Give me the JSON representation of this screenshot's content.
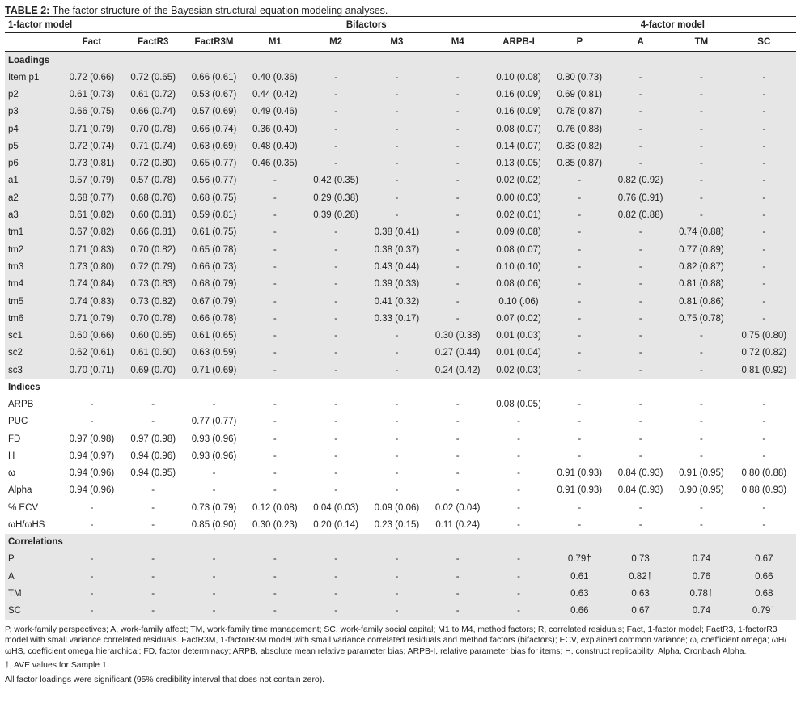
{
  "caption": {
    "label": "TABLE 2:",
    "text": " The factor structure of the Bayesian structural equation modeling analyses."
  },
  "group_headers": {
    "one_factor": "1-factor model",
    "bifactors": "Bifactors",
    "four_factor": "4-factor model"
  },
  "columns": [
    "",
    "Fact",
    "FactR3",
    "FactR3M",
    "M1",
    "M2",
    "M3",
    "M4",
    "ARPB-I",
    "P",
    "A",
    "TM",
    "SC"
  ],
  "sections": {
    "loadings": "Loadings",
    "indices": "Indices",
    "correlations": "Correlations"
  },
  "loadings": [
    [
      "Item p1",
      "0.72 (0.66)",
      "0.72 (0.65)",
      "0.66 (0.61)",
      "0.40 (0.36)",
      "-",
      "-",
      "-",
      "0.10 (0.08)",
      "0.80 (0.73)",
      "-",
      "-",
      "-"
    ],
    [
      "p2",
      "0.61 (0.73)",
      "0.61 (0.72)",
      "0.53 (0.67)",
      "0.44 (0.42)",
      "-",
      "-",
      "-",
      "0.16 (0.09)",
      "0.69 (0.81)",
      "-",
      "-",
      "-"
    ],
    [
      "p3",
      "0.66 (0.75)",
      "0.66 (0.74)",
      "0.57 (0.69)",
      "0.49 (0.46)",
      "-",
      "-",
      "-",
      "0.16 (0.09)",
      "0.78 (0.87)",
      "-",
      "-",
      "-"
    ],
    [
      "p4",
      "0.71 (0.79)",
      "0.70 (0.78)",
      "0.66 (0.74)",
      "0.36 (0.40)",
      "-",
      "-",
      "-",
      "0.08 (0.07)",
      "0.76 (0.88)",
      "-",
      "-",
      "-"
    ],
    [
      "p5",
      "0.72 (0.74)",
      "0.71 (0.74)",
      "0.63 (0.69)",
      "0.48 (0.40)",
      "-",
      "-",
      "-",
      "0.14 (0.07)",
      "0.83 (0.82)",
      "-",
      "-",
      "-"
    ],
    [
      "p6",
      "0.73 (0.81)",
      "0.72 (0.80)",
      "0.65 (0.77)",
      "0.46 (0.35)",
      "-",
      "-",
      "-",
      "0.13 (0.05)",
      "0.85 (0.87)",
      "-",
      "-",
      "-"
    ],
    [
      "a1",
      "0.57 (0.79)",
      "0.57 (0.78)",
      "0.56 (0.77)",
      "-",
      "0.42 (0.35)",
      "-",
      "-",
      "0.02 (0.02)",
      "-",
      "0.82 (0.92)",
      "-",
      "-"
    ],
    [
      "a2",
      "0.68 (0.77)",
      "0.68 (0.76)",
      "0.68 (0.75)",
      "-",
      "0.29 (0.38)",
      "-",
      "-",
      "0.00 (0.03)",
      "-",
      "0.76 (0.91)",
      "-",
      "-"
    ],
    [
      "a3",
      "0.61 (0.82)",
      "0.60 (0.81)",
      "0.59 (0.81)",
      "-",
      "0.39 (0.28)",
      "-",
      "-",
      "0.02 (0.01)",
      "-",
      "0.82 (0.88)",
      "-",
      "-"
    ],
    [
      "tm1",
      "0.67 (0.82)",
      "0.66 (0.81)",
      "0.61 (0.75)",
      "-",
      "-",
      "0.38 (0.41)",
      "-",
      "0.09 (0.08)",
      "-",
      "-",
      "0.74 (0.88)",
      "-"
    ],
    [
      "tm2",
      "0.71 (0.83)",
      "0.70 (0.82)",
      "0.65 (0.78)",
      "-",
      "-",
      "0.38 (0.37)",
      "-",
      "0.08 (0.07)",
      "-",
      "-",
      "0.77 (0.89)",
      "-"
    ],
    [
      "tm3",
      "0.73 (0.80)",
      "0.72 (0.79)",
      "0.66 (0.73)",
      "-",
      "-",
      "0.43 (0.44)",
      "-",
      "0.10 (0.10)",
      "-",
      "-",
      "0.82 (0.87)",
      "-"
    ],
    [
      "tm4",
      "0.74 (0.84)",
      "0.73 (0.83)",
      "0.68 (0.79)",
      "-",
      "-",
      "0.39 (0.33)",
      "-",
      "0.08 (0.06)",
      "-",
      "-",
      "0.81 (0.88)",
      "-"
    ],
    [
      "tm5",
      "0.74 (0.83)",
      "0.73 (0.82)",
      "0.67 (0.79)",
      "-",
      "-",
      "0.41 (0.32)",
      "-",
      "0.10 (.06)",
      "-",
      "-",
      "0.81 (0.86)",
      "-"
    ],
    [
      "tm6",
      "0.71 (0.79)",
      "0.70 (0.78)",
      "0.66 (0.78)",
      "-",
      "-",
      "0.33 (0.17)",
      "-",
      "0.07 (0.02)",
      "-",
      "-",
      "0.75 (0.78)",
      "-"
    ],
    [
      "sc1",
      "0.60 (0.66)",
      "0.60 (0.65)",
      "0.61 (0.65)",
      "-",
      "-",
      "-",
      "0.30 (0.38)",
      "0.01 (0.03)",
      "-",
      "-",
      "-",
      "0.75 (0.80)"
    ],
    [
      "sc2",
      "0.62 (0.61)",
      "0.61 (0.60)",
      "0.63 (0.59)",
      "-",
      "-",
      "-",
      "0.27 (0.44)",
      "0.01 (0.04)",
      "-",
      "-",
      "-",
      "0.72 (0.82)"
    ],
    [
      "sc3",
      "0.70 (0.71)",
      "0.69 (0.70)",
      "0.71 (0.69)",
      "-",
      "-",
      "-",
      "0.24 (0.42)",
      "0.02 (0.03)",
      "-",
      "-",
      "-",
      "0.81 (0.92)"
    ]
  ],
  "indices": [
    [
      "ARPB",
      "-",
      "-",
      "-",
      "-",
      "-",
      "-",
      "-",
      "0.08 (0.05)",
      "-",
      "-",
      "-",
      "-"
    ],
    [
      "PUC",
      "-",
      "-",
      "0.77 (0.77)",
      "-",
      "-",
      "-",
      "-",
      "-",
      "-",
      "-",
      "-",
      "-"
    ],
    [
      "FD",
      "0.97 (0.98)",
      "0.97 (0.98)",
      "0.93 (0.96)",
      "-",
      "-",
      "-",
      "-",
      "-",
      "-",
      "-",
      "-",
      "-"
    ],
    [
      "H",
      "0.94 (0.97)",
      "0.94 (0.96)",
      "0.93 (0.96)",
      "-",
      "-",
      "-",
      "-",
      "-",
      "-",
      "-",
      "-",
      "-"
    ],
    [
      "ω",
      "0.94 (0.96)",
      "0.94 (0.95)",
      "-",
      "-",
      "-",
      "-",
      "-",
      "-",
      "0.91 (0.93)",
      "0.84 (0.93)",
      "0.91 (0.95)",
      "0.80 (0.88)"
    ],
    [
      "Alpha",
      "0.94 (0.96)",
      "-",
      "-",
      "-",
      "-",
      "-",
      "-",
      "-",
      "0.91 (0.93)",
      "0.84 (0.93)",
      "0.90 (0.95)",
      "0.88 (0.93)"
    ],
    [
      "% ECV",
      "-",
      "-",
      "0.73 (0.79)",
      "0.12 (0.08)",
      "0.04 (0.03)",
      "0.09 (0.06)",
      "0.02 (0.04)",
      "-",
      "-",
      "-",
      "-",
      "-"
    ],
    [
      "ωH/ωHS",
      "-",
      "-",
      "0.85 (0.90)",
      "0.30 (0.23)",
      "0.20 (0.14)",
      "0.23 (0.15)",
      "0.11 (0.24)",
      "-",
      "-",
      "-",
      "-",
      "-"
    ]
  ],
  "correlations": [
    [
      "P",
      "-",
      "-",
      "-",
      "-",
      "-",
      "-",
      "-",
      "-",
      "0.79†",
      "0.73",
      "0.74",
      "0.67"
    ],
    [
      "A",
      "-",
      "-",
      "-",
      "-",
      "-",
      "-",
      "-",
      "-",
      "0.61",
      "0.82†",
      "0.76",
      "0.66"
    ],
    [
      "TM",
      "-",
      "-",
      "-",
      "-",
      "-",
      "-",
      "-",
      "-",
      "0.63",
      "0.63",
      "0.78†",
      "0.68"
    ],
    [
      "SC",
      "-",
      "-",
      "-",
      "-",
      "-",
      "-",
      "-",
      "-",
      "0.66",
      "0.67",
      "0.74",
      "0.79†"
    ]
  ],
  "notes": [
    "P, work-family perspectives; A, work-family affect; TM, work-family time management; SC, work-family social capital; M1 to M4, method factors; R, correlated residuals; Fact, 1-factor model; FactR3, 1-factorR3 model with small variance correlated residuals. FactR3M, 1-factorR3M model with small variance correlated residuals and method factors (bifactors); ECV, explained common variance; ω, coefficient omega; ωH/ωHS, coefficient omega hierarchical; FD, factor determinacy; ARPB, absolute mean relative parameter bias; ARPB-I, relative parameter bias for items; H, construct replicability; Alpha, Cronbach Alpha.",
    "†, AVE values for Sample 1.",
    "All factor loadings were significant (95% credibility interval that does not contain zero)."
  ]
}
